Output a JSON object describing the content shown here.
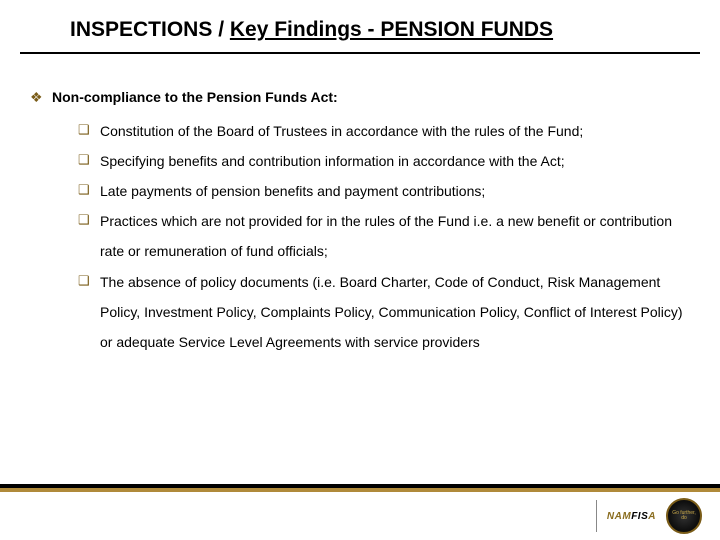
{
  "colors": {
    "text": "#000000",
    "background": "#ffffff",
    "diamond_bullet": "#7a5c18",
    "square_bullet": "#7a5c18",
    "footer_black": "#000000",
    "footer_gold": "#b08a3a",
    "seal_border": "#7a5c18",
    "seal_text": "#c9a94a"
  },
  "title": {
    "plain": "INSPECTIONS / ",
    "underlined": "Key Findings - PENSION FUNDS"
  },
  "bullets": {
    "lvl1_glyph": "❖",
    "lvl2_glyph": "❑"
  },
  "content": {
    "heading": "Non-compliance to the Pension Funds Act:",
    "items": [
      "Constitution of the Board of Trustees in accordance with the rules of the Fund;",
      "Specifying benefits and contribution information in accordance with the Act;",
      "Late payments of pension benefits and payment contributions;",
      "Practices which are not provided for in the rules of the Fund i.e. a new benefit or contribution rate or remuneration of fund officials;",
      "The absence of policy documents (i.e. Board Charter, Code of Conduct, Risk Management Policy, Investment Policy, Complaints Policy, Communication Policy, Conflict of Interest Policy) or adequate Service Level Agreements with service providers"
    ]
  },
  "logo": {
    "text_n": "NAM",
    "text_fi": "FIS",
    "text_a": "A",
    "seal_line1": "Go further,",
    "seal_line2": "do"
  }
}
